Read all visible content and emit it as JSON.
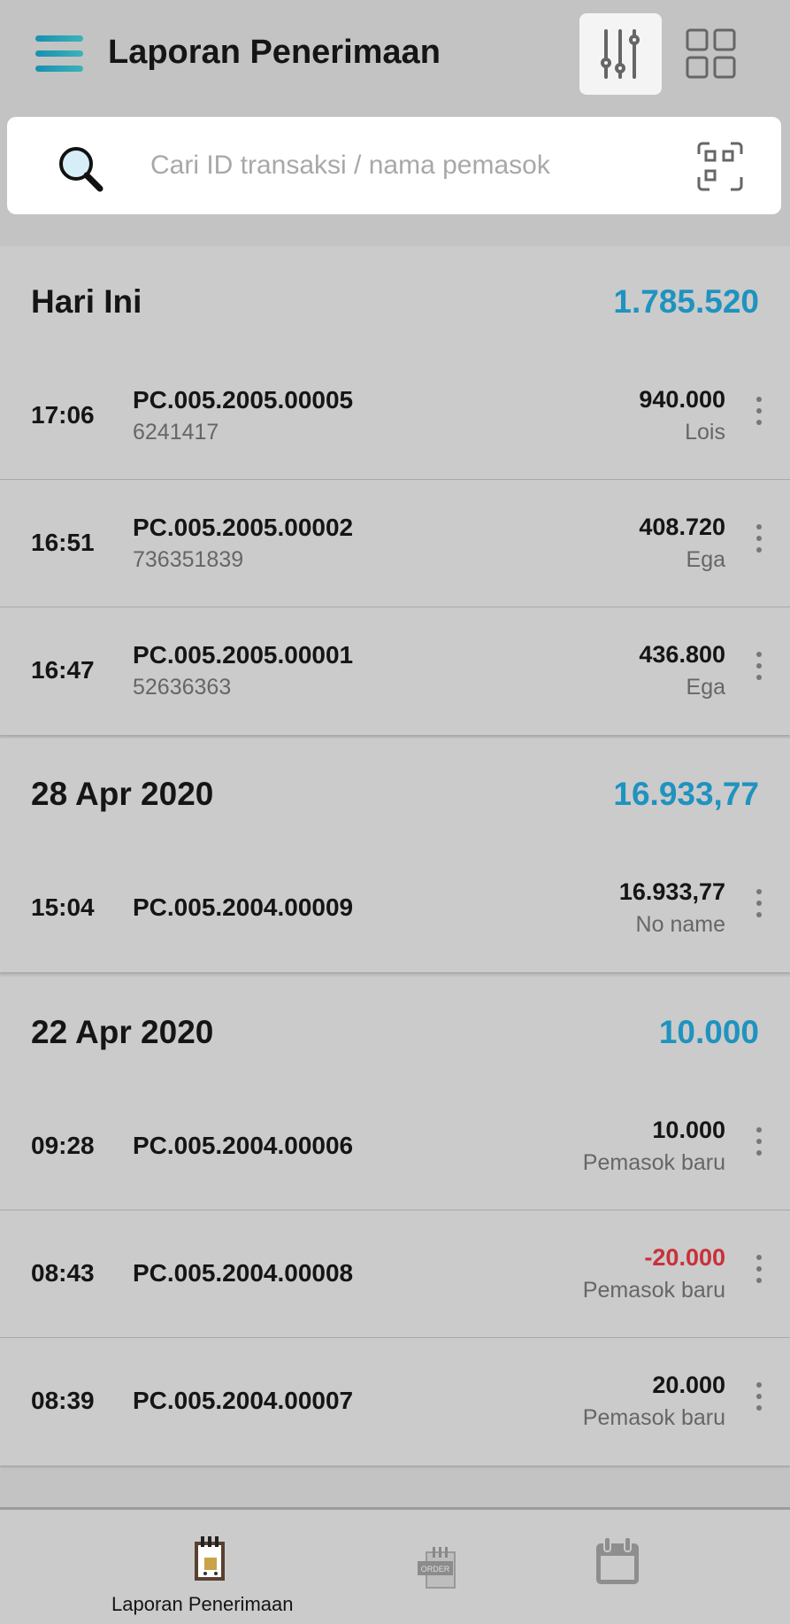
{
  "header": {
    "title": "Laporan Penerimaan",
    "menu_icon": "hamburger-icon",
    "filter_icon": "sliders-icon",
    "view_icon": "grid-icon"
  },
  "search": {
    "placeholder": "Cari ID transaksi / nama pemasok",
    "search_icon": "magnifier-icon",
    "scan_icon": "scan-icon"
  },
  "colors": {
    "accent": "#1f93bf",
    "negative": "#c9303a"
  },
  "sections": [
    {
      "date": "Hari Ini",
      "total": "1.785.520",
      "rows": [
        {
          "time": "17:06",
          "id": "PC.005.2005.00005",
          "sub": "6241417",
          "amount": "940.000",
          "supplier": "Lois"
        },
        {
          "time": "16:51",
          "id": "PC.005.2005.00002",
          "sub": "736351839",
          "amount": "408.720",
          "supplier": "Ega"
        },
        {
          "time": "16:47",
          "id": "PC.005.2005.00001",
          "sub": "52636363",
          "amount": "436.800",
          "supplier": "Ega"
        }
      ]
    },
    {
      "date": "28 Apr 2020",
      "total": "16.933,77",
      "rows": [
        {
          "time": "15:04",
          "id": "PC.005.2004.00009",
          "amount": "16.933,77",
          "supplier": "No name"
        }
      ]
    },
    {
      "date": "22 Apr 2020",
      "total": "10.000",
      "rows": [
        {
          "time": "09:28",
          "id": "PC.005.2004.00006",
          "amount": "10.000",
          "supplier": "Pemasok baru"
        },
        {
          "time": "08:43",
          "id": "PC.005.2004.00008",
          "amount": "-20.000",
          "supplier": "Pemasok baru",
          "negative": true
        },
        {
          "time": "08:39",
          "id": "PC.005.2004.00007",
          "amount": "20.000",
          "supplier": "Pemasok baru"
        }
      ]
    }
  ],
  "bottom_nav": {
    "items": [
      {
        "label": "Laporan Penerimaan",
        "icon": "receipt-cart-icon",
        "active": true
      },
      {
        "icon": "order-icon"
      },
      {
        "icon": "calendar-icon"
      }
    ]
  }
}
